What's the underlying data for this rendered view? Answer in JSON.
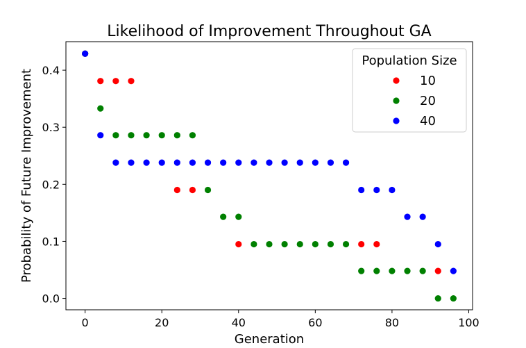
{
  "chart_data": {
    "type": "scatter",
    "title": "Likelihood of Improvement Throughout GA",
    "xlabel": "Generation",
    "ylabel": "Probability of Future Improvement",
    "xlim": [
      -5,
      101
    ],
    "ylim": [
      -0.02,
      0.45
    ],
    "xticks": [
      0,
      20,
      40,
      60,
      80,
      100
    ],
    "yticks": [
      0.0,
      0.1,
      0.2,
      0.3,
      0.4
    ],
    "xtick_labels": [
      "0",
      "20",
      "40",
      "60",
      "80",
      "100"
    ],
    "ytick_labels": [
      "0.0",
      "0.1",
      "0.2",
      "0.3",
      "0.4"
    ],
    "grid": false,
    "legend": {
      "title": "Population Size",
      "placement": "top-right"
    },
    "series": [
      {
        "name": "10",
        "color": "#ff0000",
        "points": [
          [
            0,
            0.429
          ],
          [
            4,
            0.381
          ],
          [
            8,
            0.381
          ],
          [
            12,
            0.381
          ],
          [
            24,
            0.19
          ],
          [
            28,
            0.19
          ],
          [
            40,
            0.095
          ],
          [
            72,
            0.095
          ],
          [
            76,
            0.095
          ],
          [
            92,
            0.048
          ]
        ]
      },
      {
        "name": "20",
        "color": "#008000",
        "points": [
          [
            0,
            0.429
          ],
          [
            4,
            0.333
          ],
          [
            8,
            0.286
          ],
          [
            12,
            0.286
          ],
          [
            16,
            0.286
          ],
          [
            20,
            0.286
          ],
          [
            24,
            0.286
          ],
          [
            28,
            0.286
          ],
          [
            32,
            0.19
          ],
          [
            36,
            0.143
          ],
          [
            40,
            0.143
          ],
          [
            44,
            0.095
          ],
          [
            48,
            0.095
          ],
          [
            52,
            0.095
          ],
          [
            56,
            0.095
          ],
          [
            60,
            0.095
          ],
          [
            64,
            0.095
          ],
          [
            68,
            0.095
          ],
          [
            72,
            0.048
          ],
          [
            76,
            0.048
          ],
          [
            80,
            0.048
          ],
          [
            84,
            0.048
          ],
          [
            88,
            0.048
          ],
          [
            92,
            0.0
          ],
          [
            96,
            0.0
          ]
        ]
      },
      {
        "name": "40",
        "color": "#0000ff",
        "points": [
          [
            0,
            0.429
          ],
          [
            4,
            0.286
          ],
          [
            8,
            0.238
          ],
          [
            12,
            0.238
          ],
          [
            16,
            0.238
          ],
          [
            20,
            0.238
          ],
          [
            24,
            0.238
          ],
          [
            28,
            0.238
          ],
          [
            32,
            0.238
          ],
          [
            36,
            0.238
          ],
          [
            40,
            0.238
          ],
          [
            44,
            0.238
          ],
          [
            48,
            0.238
          ],
          [
            52,
            0.238
          ],
          [
            56,
            0.238
          ],
          [
            60,
            0.238
          ],
          [
            64,
            0.238
          ],
          [
            68,
            0.238
          ],
          [
            72,
            0.19
          ],
          [
            76,
            0.19
          ],
          [
            80,
            0.19
          ],
          [
            84,
            0.143
          ],
          [
            88,
            0.143
          ],
          [
            92,
            0.095
          ],
          [
            96,
            0.048
          ]
        ]
      }
    ]
  }
}
